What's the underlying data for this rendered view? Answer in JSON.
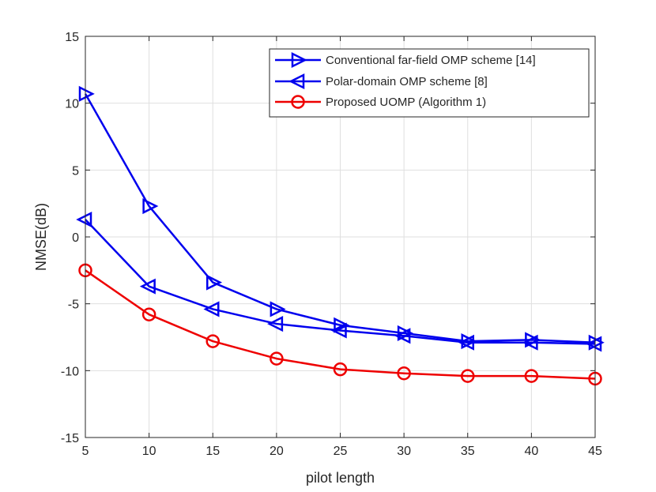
{
  "chart_data": {
    "type": "line",
    "title": "",
    "xlabel": "pilot length",
    "ylabel": "NMSE(dB)",
    "xlim": [
      5,
      45
    ],
    "ylim": [
      -15,
      15
    ],
    "xticks": [
      5,
      10,
      15,
      20,
      25,
      30,
      35,
      40,
      45
    ],
    "yticks": [
      -15,
      -10,
      -5,
      0,
      5,
      10,
      15
    ],
    "grid": true,
    "legend_position": "top-right",
    "x": [
      5,
      10,
      15,
      20,
      25,
      30,
      35,
      40,
      45
    ],
    "series": [
      {
        "name": "Conventional far-field OMP scheme [14]",
        "color": "#0000ee",
        "marker": "triangle-right",
        "values": [
          10.7,
          2.3,
          -3.4,
          -5.4,
          -6.6,
          -7.2,
          -7.8,
          -7.7,
          -7.9
        ]
      },
      {
        "name": "Polar-domain OMP scheme [8]",
        "color": "#0000ee",
        "marker": "triangle-left",
        "values": [
          1.3,
          -3.7,
          -5.4,
          -6.5,
          -7.0,
          -7.4,
          -7.9,
          -7.9,
          -8.0
        ]
      },
      {
        "name": "Proposed UOMP (Algorithm 1)",
        "color": "#ee0000",
        "marker": "circle",
        "values": [
          -2.5,
          -5.8,
          -7.8,
          -9.1,
          -9.9,
          -10.2,
          -10.4,
          -10.4,
          -10.6
        ]
      }
    ]
  }
}
